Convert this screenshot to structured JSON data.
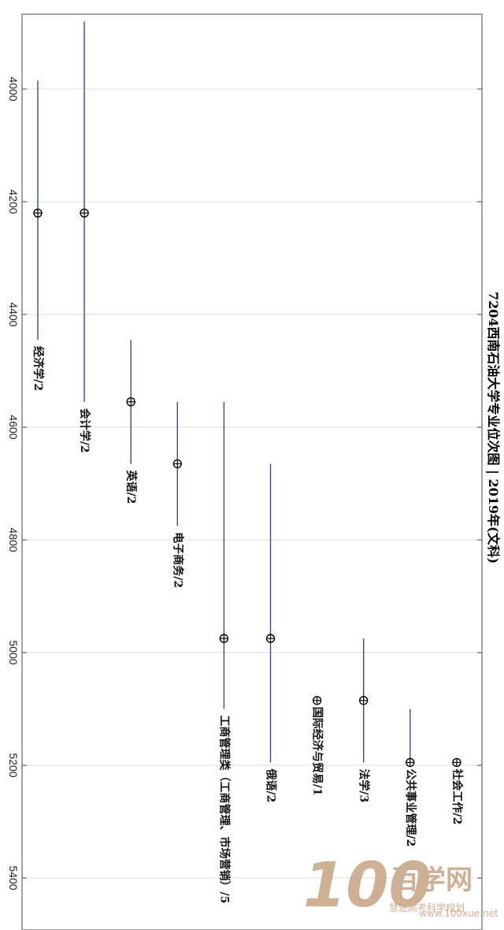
{
  "chart_data": {
    "type": "range",
    "title": "7204西南石油大学专业位次图 | 2019年(文科)",
    "xlabel": "",
    "ylabel": "",
    "ylim": [
      3870,
      5470
    ],
    "yticks": [
      4000,
      4200,
      4400,
      4600,
      4800,
      5000,
      5200,
      5400
    ],
    "grid": true,
    "categories": [
      "经济学/2",
      "会计学/2",
      "英语/2",
      "电子商务/2",
      "工商管理类（工商管理、市场营销）/5",
      "俄语/2",
      "国际经济与贸易/1",
      "法学/3",
      "公共事业管理/2",
      "社会工作/2"
    ],
    "series": [
      {
        "low": [
          3985,
          3880,
          4445,
          4555,
          4555,
          4665,
          5085,
          4975,
          5100,
          5195
        ],
        "mid": [
          4220,
          4220,
          4555,
          4665,
          4975,
          4975,
          5085,
          5085,
          5195,
          5195
        ],
        "high": [
          4445,
          4555,
          4665,
          4775,
          5100,
          5195,
          5085,
          5195,
          5195,
          5195
        ]
      }
    ]
  },
  "watermark": {
    "logo": "100",
    "brand": "百学网",
    "sub": "慧途高考科学规划",
    "site": "www.100xue.net"
  },
  "colors": {
    "line": "#3a4a8c",
    "marker": "#000000",
    "grid": "#dcdcdc",
    "frame": "#444444",
    "watermark": "#c9a989"
  }
}
